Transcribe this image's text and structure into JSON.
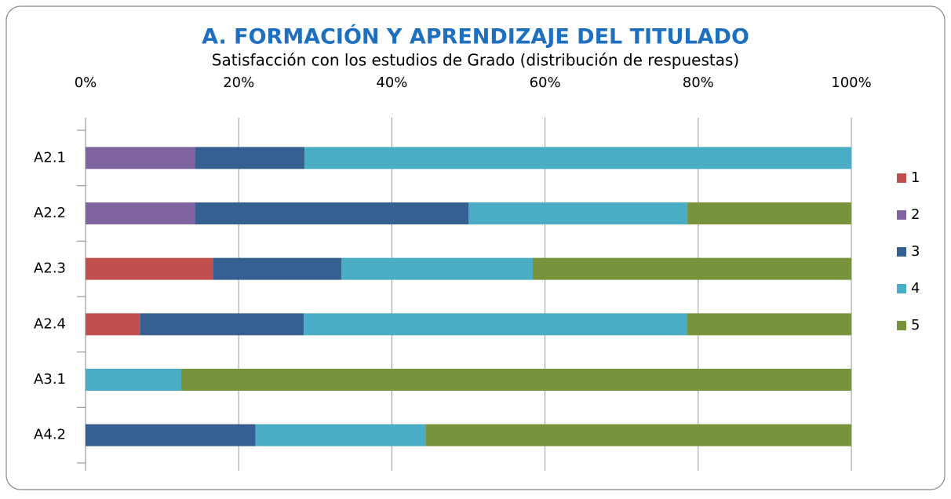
{
  "chart_data": {
    "type": "stacked_barh",
    "title": "A.  FORMACIÓN Y APRENDIZAJE DEL TITULADO",
    "subtitle": "Satisfacción con los estudios de Grado (distribución de respuestas)",
    "categories": [
      "A2.1",
      "A2.2",
      "A2.3",
      "A2.4",
      "A3.1",
      "A4.2"
    ],
    "series": [
      {
        "name": "1",
        "color": "#c0504d",
        "values": [
          0,
          0,
          16.7,
          7.1,
          0,
          0
        ]
      },
      {
        "name": "2",
        "color": "#8064a2",
        "values": [
          14.3,
          14.3,
          0,
          0,
          0,
          0
        ]
      },
      {
        "name": "3",
        "color": "#376092",
        "values": [
          14.3,
          35.7,
          16.7,
          21.4,
          0,
          22.2
        ]
      },
      {
        "name": "4",
        "color": "#4bacc6",
        "values": [
          71.4,
          28.6,
          25,
          50,
          12.5,
          22.2
        ]
      },
      {
        "name": "5",
        "color": "#77933c",
        "values": [
          0,
          21.4,
          41.6,
          21.5,
          87.5,
          55.6
        ]
      }
    ],
    "xlim": [
      0,
      100
    ],
    "xticks": [
      {
        "value": 0,
        "label": "0%"
      },
      {
        "value": 20,
        "label": "20%"
      },
      {
        "value": 40,
        "label": "40%"
      },
      {
        "value": 60,
        "label": "60%"
      },
      {
        "value": 80,
        "label": "80%"
      },
      {
        "value": 100,
        "label": "100%"
      }
    ],
    "grid": true,
    "legend": "right"
  }
}
